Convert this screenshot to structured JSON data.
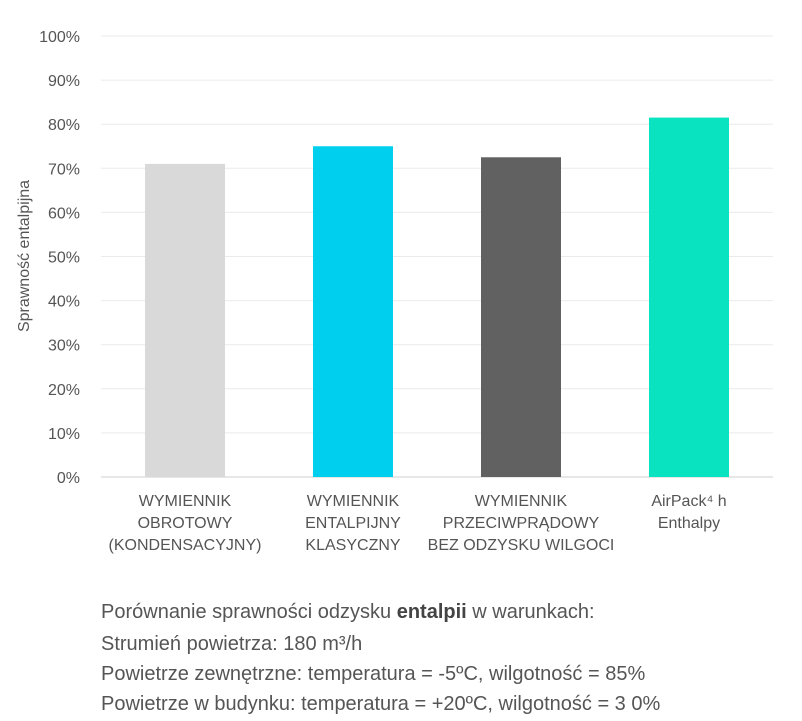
{
  "chart_data": {
    "type": "bar",
    "categories": [
      [
        "WYMIENNIK",
        "OBROTOWY",
        "(KONDENSACYJNY)"
      ],
      [
        "WYMIENNIK",
        "ENTALPIJNY",
        "KLASYCZNY"
      ],
      [
        "WYMIENNIK",
        "PRZECIWPRĄDOWY",
        "BEZ ODZYSKU WILGOCI"
      ],
      [
        "AirPack⁴ h",
        "Enthalpy"
      ]
    ],
    "values": [
      71,
      75,
      72.5,
      81.5
    ],
    "colors": [
      "#d9d9d9",
      "#00cfee",
      "#616161",
      "#0ae3bf"
    ],
    "ylabel": "Sprawność entalpijna",
    "xlabel": "",
    "title": "",
    "ylim": [
      0,
      100
    ],
    "yticks": [
      "0%",
      "10%",
      "20%",
      "30%",
      "40%",
      "50%",
      "60%",
      "70%",
      "80%",
      "90%",
      "100%"
    ],
    "grid": true
  },
  "caption": {
    "line1_prefix": "Porównanie sprawności odzysku ",
    "line1_bold": "entalpii",
    "line1_suffix": " w warunkach:",
    "line2": "Strumień powietrza: 180 m³/h",
    "line3": "Powietrze zewnętrzne: temperatura = -5ºC, wilgotność = 85%",
    "line4": "Powietrze w budynku: temperatura = +20ºC, wilgotność = 3  0%"
  }
}
